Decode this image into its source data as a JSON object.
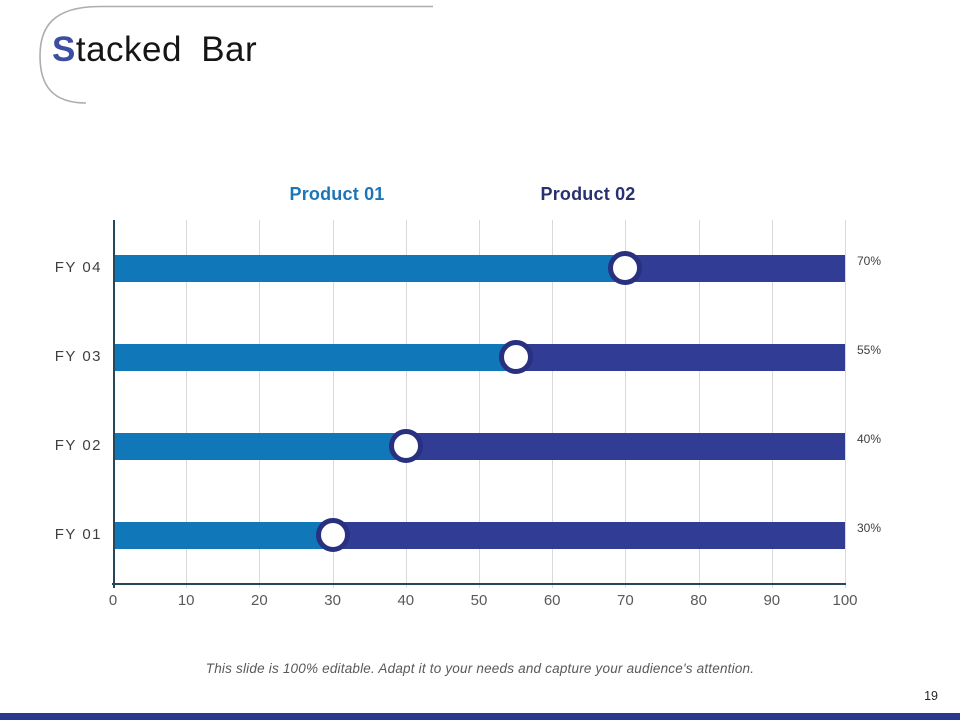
{
  "slide": {
    "title": {
      "lead": "S",
      "rest": "tacked Bar"
    },
    "footer": "This slide is 100% editable. Adapt it to your needs and capture your audience's attention.",
    "page_number": "19"
  },
  "colors": {
    "title_accent": "#3B4EA2",
    "axis": "#25475A",
    "gridline": "#D9D9D9",
    "marker_ring": "#28307F",
    "marker_fill": "#FFFFFF",
    "footer_bar": "#2B3890",
    "legend_product_01": "#1B76B8",
    "legend_product_02": "#2A3171"
  },
  "chart_data": {
    "type": "bar",
    "orientation": "horizontal",
    "stacked": true,
    "title": "Stacked Bar",
    "categories": [
      "FY 04",
      "FY 03",
      "FY 02",
      "FY 01"
    ],
    "series": [
      {
        "name": "Product 01",
        "color": "#1077B9",
        "values": [
          70,
          55,
          40,
          30
        ]
      },
      {
        "name": "Product 02",
        "color": "#313C95",
        "values": [
          30,
          45,
          60,
          70
        ]
      }
    ],
    "data_labels": [
      "70%",
      "55%",
      "40%",
      "30%"
    ],
    "x_ticks": [
      0,
      10,
      20,
      30,
      40,
      50,
      60,
      70,
      80,
      90,
      100
    ],
    "xlim": [
      0,
      100
    ],
    "xlabel": "",
    "ylabel": "",
    "grid": "vertical",
    "legend_position": "top"
  }
}
